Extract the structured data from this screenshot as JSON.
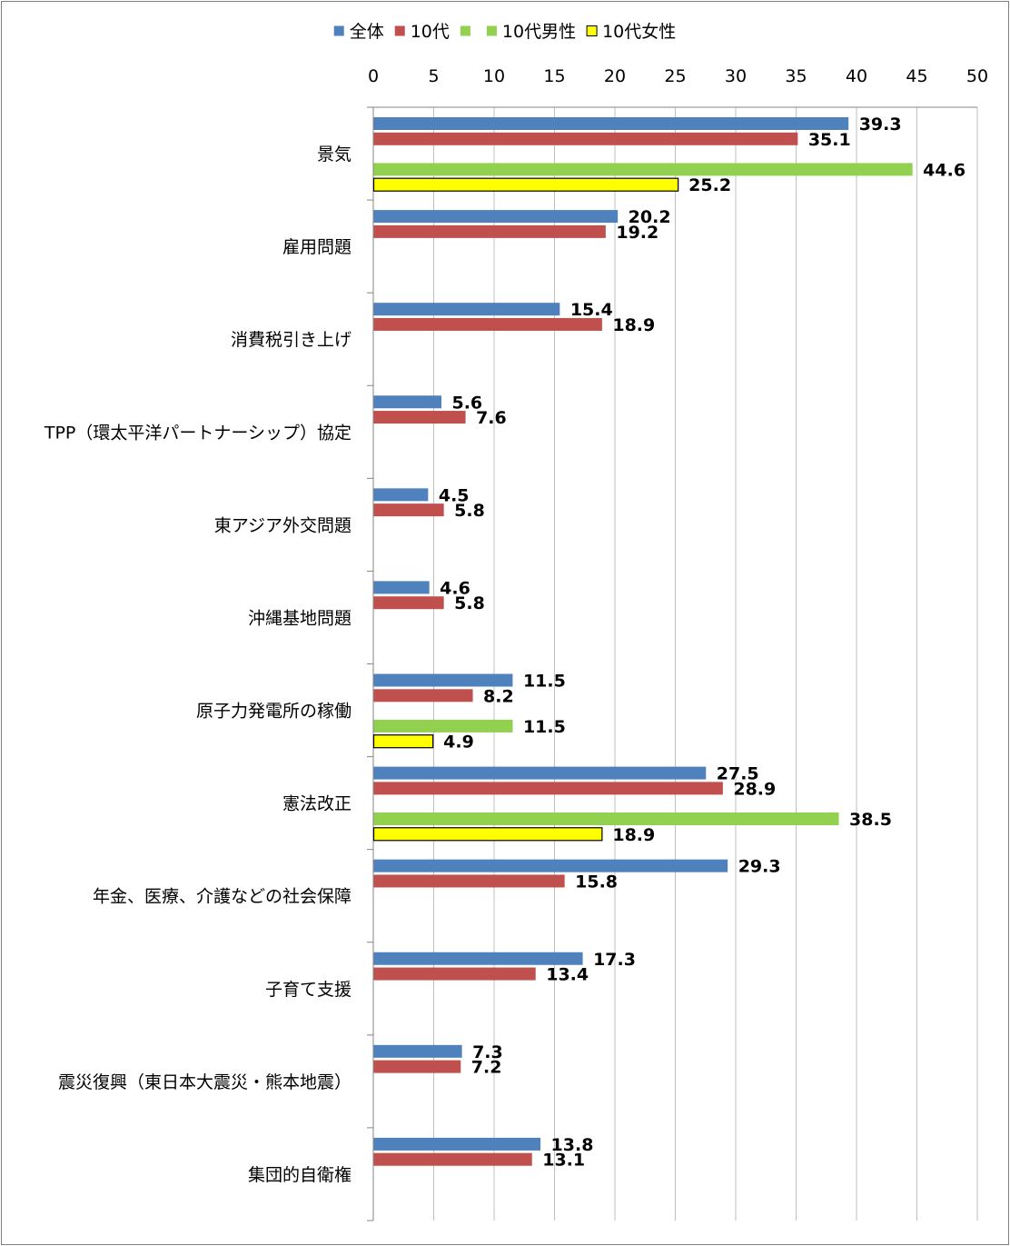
{
  "chart_data": {
    "type": "bar",
    "orientation": "horizontal",
    "title": "",
    "xlabel": "",
    "ylabel": "",
    "xlim": [
      0,
      50
    ],
    "x_ticks": [
      "0",
      "5",
      "10",
      "15",
      "20",
      "25",
      "30",
      "35",
      "40",
      "45",
      "50"
    ],
    "grid": "vertical",
    "legend_position": "top",
    "categories": [
      "景気",
      "雇用問題",
      "消費税引き上げ",
      "TPP（環太平洋パートナーシップ）協定",
      "東アジア外交問題",
      "沖縄基地問題",
      "原子力発電所の稼働",
      "憲法改正",
      "年金、医療、介護などの社会保障",
      "子育て支援",
      "震災復興（東日本大震災・熊本地震）",
      "集団的自衛権"
    ],
    "series": [
      {
        "name": "全体",
        "color": "#4f81bd",
        "values": [
          39.3,
          20.2,
          15.4,
          5.6,
          4.5,
          4.6,
          11.5,
          27.5,
          29.3,
          17.3,
          7.3,
          13.8
        ],
        "labels": [
          "39.3",
          "20.2",
          "15.4",
          "5.6",
          "4.5",
          "4.6",
          "11.5",
          "27.5",
          "29.3",
          "17.3",
          "7.3",
          "13.8"
        ]
      },
      {
        "name": "10代",
        "color": "#c0504d",
        "values": [
          35.1,
          19.2,
          18.9,
          7.6,
          5.8,
          5.8,
          8.2,
          28.9,
          15.8,
          13.4,
          7.2,
          13.1
        ],
        "labels": [
          "35.1",
          "19.2",
          "18.9",
          "7.6",
          "5.8",
          "5.8",
          "8.2",
          "28.9",
          "15.8",
          "13.4",
          "7.2",
          "13.1"
        ]
      },
      {
        "name": "",
        "color": "#92d050",
        "values": [
          null,
          null,
          null,
          null,
          null,
          null,
          null,
          null,
          null,
          null,
          null,
          null
        ],
        "labels": [
          "",
          "",
          "",
          "",
          "",
          "",
          "",
          "",
          "",
          "",
          "",
          ""
        ]
      },
      {
        "name": "10代男性",
        "color": "#92d050",
        "values": [
          44.6,
          null,
          null,
          null,
          null,
          null,
          11.5,
          38.5,
          null,
          null,
          null,
          null
        ],
        "labels": [
          "44.6",
          "",
          "",
          "",
          "",
          "",
          "11.5",
          "38.5",
          "",
          "",
          "",
          ""
        ]
      },
      {
        "name": "10代女性",
        "color": "#ffff00",
        "outline": "#000000",
        "values": [
          25.2,
          null,
          null,
          null,
          null,
          null,
          4.9,
          18.9,
          null,
          null,
          null,
          null
        ],
        "labels": [
          "25.2",
          "",
          "",
          "",
          "",
          "",
          "4.9",
          "18.9",
          "",
          "",
          "",
          ""
        ]
      }
    ]
  }
}
